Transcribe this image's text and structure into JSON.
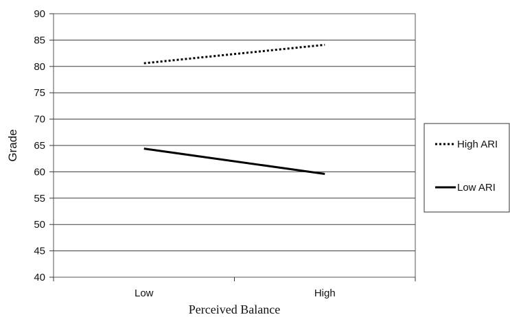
{
  "chart_data": {
    "type": "line",
    "title": "",
    "xlabel": "Perceived Balance",
    "ylabel": "Grade",
    "categories": [
      "Low",
      "High"
    ],
    "ylim": [
      40,
      90
    ],
    "yticks": [
      40,
      45,
      50,
      55,
      60,
      65,
      70,
      75,
      80,
      85,
      90
    ],
    "grid": true,
    "legend_position": "right",
    "series": [
      {
        "name": "High ARI",
        "values": [
          80.6,
          84.1
        ],
        "style": "dotted",
        "color": "#000000"
      },
      {
        "name": "Low ARI",
        "values": [
          64.4,
          59.6
        ],
        "style": "solid",
        "color": "#000000"
      }
    ]
  }
}
